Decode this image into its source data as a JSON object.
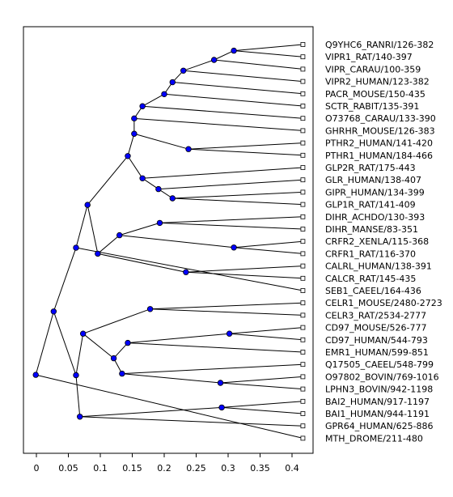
{
  "chart_data": {
    "type": "dendrogram",
    "x_ticks": [
      "0",
      "0.05",
      "0.1",
      "0.15",
      "0.2",
      "0.25",
      "0.3",
      "0.35",
      "0.4"
    ],
    "x_tick_values": [
      0,
      0.05,
      0.1,
      0.15,
      0.2,
      0.25,
      0.3,
      0.35,
      0.4
    ],
    "xlim": [
      -0.02,
      0.43
    ],
    "leaf_x": 0.417,
    "leaves": [
      "Q9YHC6_RANRI/126-382",
      "VIPR1_RAT/140-397",
      "VIPR_CARAU/100-359",
      "VIPR2_HUMAN/123-382",
      "PACR_MOUSE/150-435",
      "SCTR_RABIT/135-391",
      "O73768_CARAU/133-390",
      "GHRHR_MOUSE/126-383",
      "PTHR2_HUMAN/141-420",
      "PTHR1_HUMAN/184-466",
      "GLP2R_RAT/175-443",
      "GLR_HUMAN/138-407",
      "GIPR_HUMAN/134-399",
      "GLP1R_RAT/141-409",
      "DIHR_ACHDO/130-393",
      "DIHR_MANSE/83-351",
      "CRFR2_XENLA/115-368",
      "CRFR1_RAT/116-370",
      "CALRL_HUMAN/138-391",
      "CALCR_RAT/145-435",
      "SEB1_CAEEL/164-436",
      "CELR1_MOUSE/2480-2723",
      "CELR3_RAT/2534-2777",
      "CD97_MOUSE/526-777",
      "CD97_HUMAN/544-793",
      "EMR1_HUMAN/599-851",
      "Q17505_CAEEL/548-799",
      "O97802_BOVIN/769-1016",
      "LPHN3_BOVIN/942-1198",
      "BAI2_HUMAN/917-1197",
      "BAI1_HUMAN/944-1191",
      "GPR64_HUMAN/625-886",
      "MTH_DROME/211-480"
    ],
    "nodes": [
      {
        "id": "n1",
        "x": 0.309,
        "children": [
          0,
          1
        ]
      },
      {
        "id": "n2",
        "x": 0.278,
        "children": [
          "n1",
          2
        ]
      },
      {
        "id": "n3",
        "x": 0.23,
        "children": [
          "n2",
          3
        ]
      },
      {
        "id": "n4",
        "x": 0.213,
        "children": [
          "n3",
          4
        ]
      },
      {
        "id": "n5",
        "x": 0.2,
        "children": [
          "n4",
          5
        ]
      },
      {
        "id": "n6",
        "x": 0.166,
        "children": [
          "n5",
          6
        ]
      },
      {
        "id": "n7",
        "x": 0.153,
        "children": [
          "n6",
          7
        ]
      },
      {
        "id": "n8",
        "x": 0.238,
        "children": [
          8,
          9
        ]
      },
      {
        "id": "n9",
        "x": 0.153,
        "children": [
          "n7",
          "n8"
        ]
      },
      {
        "id": "n10",
        "x": 0.213,
        "children": [
          12,
          13
        ]
      },
      {
        "id": "n11",
        "x": 0.191,
        "children": [
          11,
          "n10"
        ]
      },
      {
        "id": "n12",
        "x": 0.166,
        "children": [
          10,
          "n11"
        ]
      },
      {
        "id": "n13",
        "x": 0.143,
        "children": [
          "n9",
          "n12"
        ]
      },
      {
        "id": "n14",
        "x": 0.193,
        "children": [
          14,
          15
        ]
      },
      {
        "id": "n15",
        "x": 0.309,
        "children": [
          16,
          17
        ]
      },
      {
        "id": "n16",
        "x": 0.13,
        "children": [
          "n14",
          "n15"
        ]
      },
      {
        "id": "n17",
        "x": 0.234,
        "children": [
          18,
          19
        ]
      },
      {
        "id": "n18",
        "x": 0.096,
        "children": [
          "n16",
          "n17"
        ]
      },
      {
        "id": "n19",
        "x": 0.08,
        "children": [
          "n13",
          "n18"
        ]
      },
      {
        "id": "n20",
        "x": 0.062,
        "children": [
          "n19",
          20
        ]
      },
      {
        "id": "n21",
        "x": 0.178,
        "children": [
          21,
          22
        ]
      },
      {
        "id": "n22",
        "x": 0.302,
        "children": [
          23,
          24
        ]
      },
      {
        "id": "n23",
        "x": 0.143,
        "children": [
          "n22",
          25
        ]
      },
      {
        "id": "n24",
        "x": 0.288,
        "children": [
          27,
          28
        ]
      },
      {
        "id": "n25",
        "x": 0.134,
        "children": [
          26,
          "n24"
        ]
      },
      {
        "id": "n26",
        "x": 0.121,
        "children": [
          "n23",
          "n25"
        ]
      },
      {
        "id": "n27",
        "x": 0.073,
        "children": [
          "n21",
          "n26"
        ]
      },
      {
        "id": "n28",
        "x": 0.29,
        "children": [
          29,
          30
        ]
      },
      {
        "id": "n29",
        "x": 0.068,
        "children": [
          "n28",
          31
        ]
      },
      {
        "id": "n30",
        "x": 0.062,
        "children": [
          "n27",
          "n29"
        ]
      },
      {
        "id": "n31",
        "x": 0.027,
        "children": [
          "n20",
          "n30"
        ]
      },
      {
        "id": "n32",
        "x": -0.001,
        "children": [
          "n31",
          32
        ]
      }
    ],
    "colors": {
      "line": "#000000",
      "node_fill": "#0000ff",
      "node_stroke": "#000000",
      "axes": "#000000",
      "text": "#000000",
      "background": "#ffffff"
    }
  }
}
